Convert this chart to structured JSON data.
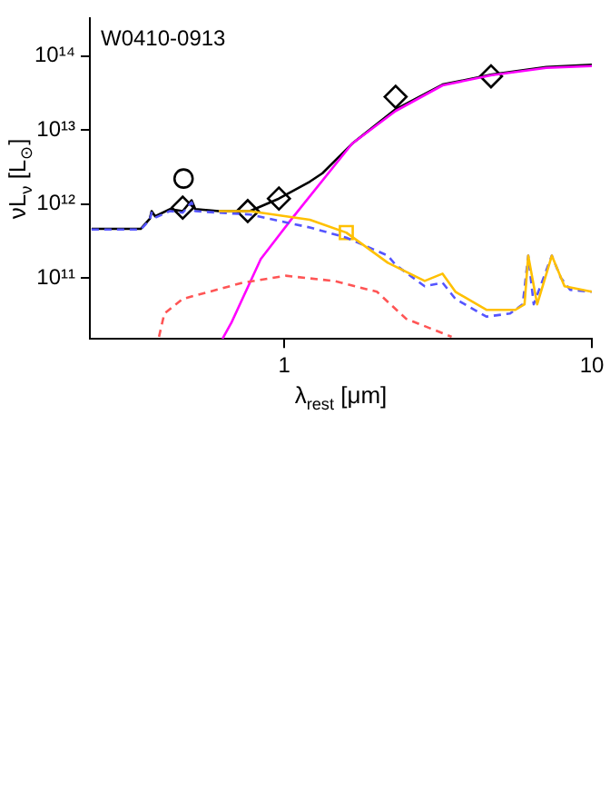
{
  "chart_data": {
    "type": "line",
    "xlabel": "λ$_{rest}$ [μm]",
    "ylabel": "νL$_{ν}$ [L$_{⊙}$]",
    "annotations": [
      "W0410-0913"
    ],
    "log": "xy",
    "grid": false,
    "legend": false,
    "xlim": [
      0.233,
      10
    ],
    "xticks": [
      1,
      10
    ],
    "ylim": [
      15000000000.0,
      320000000000000.0
    ],
    "yticks": [
      {
        "value": 100000000000.0,
        "label": "10¹¹"
      },
      {
        "value": 1000000000000.0,
        "label": "10¹²"
      },
      {
        "value": 10000000000000.0,
        "label": "10¹³"
      },
      {
        "value": 100000000000000.0,
        "label": "10¹⁴"
      }
    ],
    "series": [
      {
        "type": "line",
        "color": "#ff5555",
        "line_style": "dashed",
        "marker": "none",
        "x": [
          0.391,
          0.407,
          0.467,
          0.731,
          1.01,
          1.45,
          2.0,
          2.49,
          3.5
        ],
        "values": [
          16000000000.0,
          33000000000.0,
          52000000000.0,
          86000000000.0,
          107000000000.0,
          91000000000.0,
          65000000000.0,
          28000000000.0,
          16000000000.0
        ]
      },
      {
        "type": "line",
        "color": "#ffc000",
        "line_style": "solid",
        "marker": "none",
        "x": [
          0.612,
          0.772,
          1.21,
          1.59,
          2.17,
          2.86,
          3.27,
          3.6,
          4.54,
          5.64,
          6.04,
          6.21,
          6.64,
          7.41,
          8.15,
          10
        ],
        "values": [
          800000000000.0,
          800000000000.0,
          610000000000.0,
          410000000000.0,
          160000000000.0,
          91000000000.0,
          114000000000.0,
          65000000000.0,
          37000000000.0,
          37000000000.0,
          44000000000.0,
          200000000000.0,
          44000000000.0,
          200000000000.0,
          77000000000.0,
          65000000000.0
        ]
      },
      {
        "type": "line",
        "color": "#5555ff",
        "line_style": "dashed",
        "marker": "none",
        "x": [
          0.236,
          0.341,
          0.365,
          0.37,
          0.38,
          0.424,
          0.467,
          0.499,
          0.513,
          0.612,
          0.772,
          1.06,
          1.21,
          1.59,
          2.17,
          2.3,
          2.86,
          3.27,
          3.6,
          4.54,
          5.42,
          5.96,
          6.21,
          6.47,
          7.41,
          7.93,
          8.5,
          10
        ],
        "values": [
          450000000000.0,
          450000000000.0,
          610000000000.0,
          760000000000.0,
          650000000000.0,
          800000000000.0,
          760000000000.0,
          1050000000000.0,
          800000000000.0,
          760000000000.0,
          720000000000.0,
          540000000000.0,
          480000000000.0,
          350000000000.0,
          200000000000.0,
          150000000000.0,
          77000000000.0,
          86000000000.0,
          52000000000.0,
          30000000000.0,
          33000000000.0,
          44000000000.0,
          200000000000.0,
          44000000000.0,
          200000000000.0,
          100000000000.0,
          69000000000.0,
          65000000000.0
        ]
      },
      {
        "type": "line",
        "color": "#ff00ff",
        "line_style": "solid",
        "marker": "none",
        "x": [
          0.629,
          0.673,
          0.838,
          1.06,
          1.66,
          2.3,
          3.27,
          4.73,
          7.11,
          10
        ],
        "values": [
          15000000000.0,
          25000000000.0,
          180000000000.0,
          640000000000.0,
          6500000000000.0,
          18000000000000.0,
          40000000000000.0,
          55000000000000.0,
          69000000000000.0,
          73000000000000.0
        ]
      },
      {
        "type": "line",
        "color": "#000000",
        "line_style": "solid",
        "marker": "none",
        "x": [
          0.236,
          0.341,
          0.365,
          0.37,
          0.38,
          0.424,
          0.467,
          0.499,
          0.513,
          0.612,
          0.772,
          0.96,
          1.21,
          1.33,
          1.66,
          2.0,
          2.3,
          3.27,
          4.73,
          7.11,
          10
        ],
        "values": [
          460000000000.0,
          460000000000.0,
          630000000000.0,
          800000000000.0,
          680000000000.0,
          850000000000.0,
          800000000000.0,
          1120000000000.0,
          850000000000.0,
          800000000000.0,
          800000000000.0,
          1180000000000.0,
          2000000000000.0,
          2600000000000.0,
          6500000000000.0,
          12000000000000.0,
          19000000000000.0,
          41000000000000.0,
          56000000000000.0,
          71000000000000.0,
          76000000000000.0
        ]
      },
      {
        "type": "scatter",
        "color": "#000000",
        "marker": "diamond",
        "x": [
          0.467,
          0.76,
          0.96,
          2.3,
          4.7
        ],
        "values": [
          890000000000.0,
          800000000000.0,
          1180000000000.0,
          28000000000000.0,
          53000000000000.0
        ]
      },
      {
        "type": "scatter",
        "color": "#000000",
        "marker": "circle",
        "x": [
          0.47
        ],
        "values": [
          2200000000000.0
        ]
      },
      {
        "type": "scatter",
        "color": "#ffc000",
        "marker": "square",
        "x": [
          1.59
        ],
        "values": [
          410000000000.0
        ]
      }
    ]
  }
}
